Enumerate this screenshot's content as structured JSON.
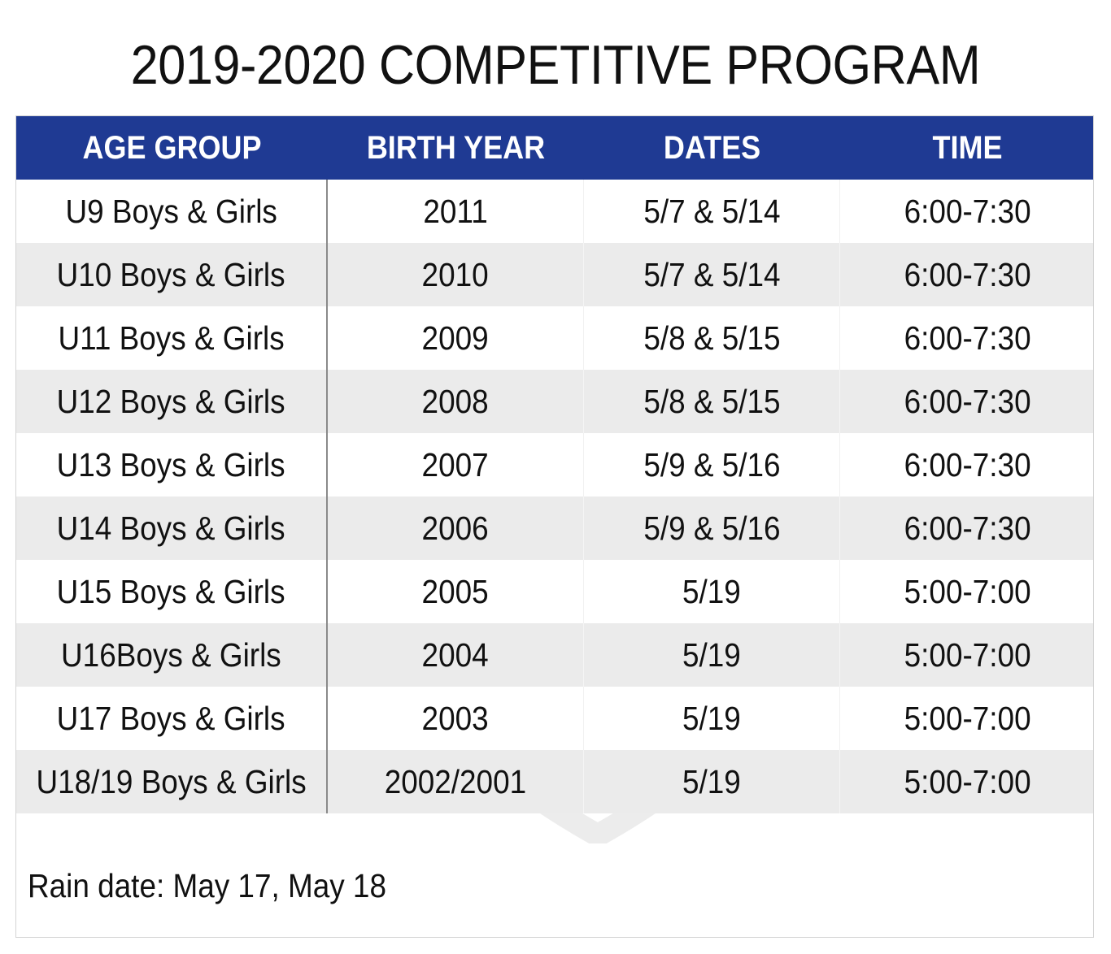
{
  "title": "2019-2020 COMPETITIVE PROGRAM",
  "colors": {
    "header_bg": "#1f3a93",
    "header_text": "#ffffff",
    "row_alt": "#ebebeb"
  },
  "table": {
    "headers": [
      "AGE GROUP",
      "BIRTH YEAR",
      "DATES",
      "TIME"
    ],
    "rows": [
      [
        "U9 Boys & Girls",
        "2011",
        "5/7 & 5/14",
        "6:00-7:30"
      ],
      [
        "U10 Boys & Girls",
        "2010",
        "5/7 & 5/14",
        "6:00-7:30"
      ],
      [
        "U11 Boys & Girls",
        "2009",
        "5/8 & 5/15",
        "6:00-7:30"
      ],
      [
        "U12 Boys & Girls",
        "2008",
        "5/8 & 5/15",
        "6:00-7:30"
      ],
      [
        "U13 Boys & Girls",
        "2007",
        "5/9 & 5/16",
        "6:00-7:30"
      ],
      [
        "U14 Boys & Girls",
        "2006",
        "5/9 & 5/16",
        "6:00-7:30"
      ],
      [
        "U15 Boys & Girls",
        "2005",
        "5/19",
        "5:00-7:00"
      ],
      [
        "U16Boys & Girls",
        "2004",
        "5/19",
        "5:00-7:00"
      ],
      [
        "U17 Boys & Girls",
        "2003",
        "5/19",
        "5:00-7:00"
      ],
      [
        "U18/19 Boys & Girls",
        "2002/2001",
        "5/19",
        "5:00-7:00"
      ]
    ]
  },
  "watermark": {
    "icon": "club-crest-watermark"
  },
  "note": "Rain date: May 17, May 18"
}
